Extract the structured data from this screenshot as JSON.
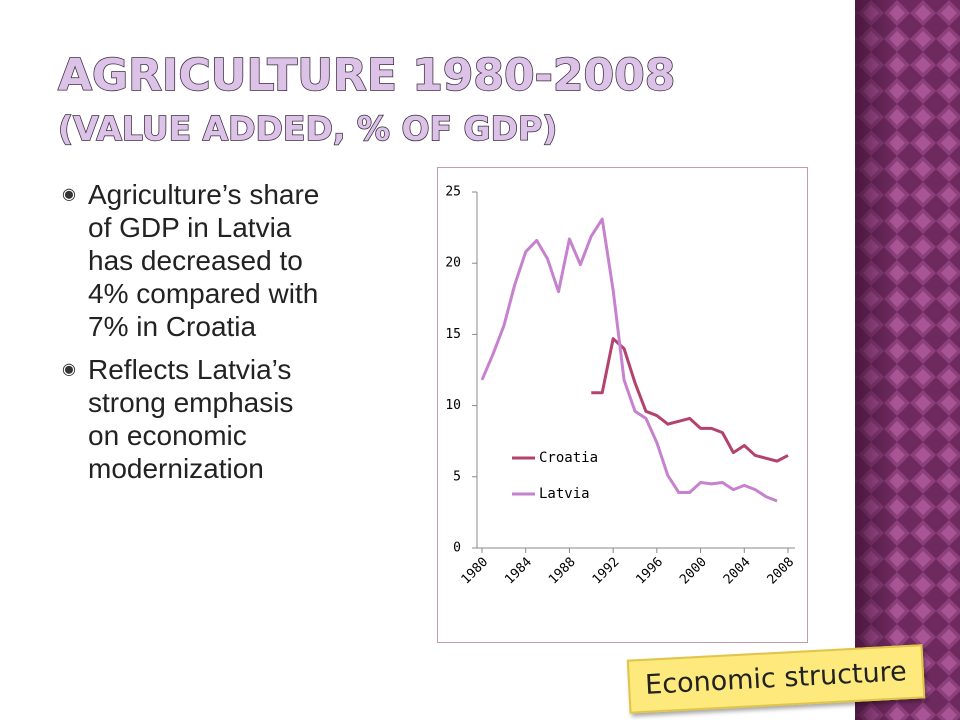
{
  "slide": {
    "title": [
      "AGRICULTURE 1980-2008",
      "(VALUE ADDED, % OF GDP)"
    ],
    "bullets": [
      [
        "Agriculture’s share",
        "of GDP in Latvia",
        "has decreased to",
        "4% compared with",
        "7% in Croatia"
      ],
      [
        "Reflects Latvia’s",
        "strong emphasis",
        "on economic",
        "modernization"
      ]
    ],
    "tag": "Economic structure"
  },
  "chart_data": {
    "type": "line",
    "x": [
      1980,
      1981,
      1982,
      1983,
      1984,
      1985,
      1986,
      1987,
      1988,
      1989,
      1990,
      1991,
      1992,
      1993,
      1994,
      1995,
      1996,
      1997,
      1998,
      1999,
      2000,
      2001,
      2002,
      2003,
      2004,
      2005,
      2006,
      2007,
      2008
    ],
    "series": [
      {
        "name": "Croatia",
        "color": "#b3426e",
        "values": [
          null,
          null,
          null,
          null,
          null,
          null,
          null,
          null,
          null,
          null,
          10.9,
          10.9,
          14.7,
          14.0,
          11.6,
          9.6,
          9.3,
          8.7,
          8.9,
          9.1,
          8.4,
          8.4,
          8.1,
          6.7,
          7.2,
          6.5,
          6.3,
          6.1,
          6.5
        ]
      },
      {
        "name": "Latvia",
        "color": "#c681cf",
        "values": [
          11.8,
          13.6,
          15.6,
          18.5,
          20.8,
          21.6,
          20.3,
          18.0,
          21.7,
          19.9,
          21.9,
          23.1,
          18.1,
          11.8,
          9.6,
          9.1,
          7.4,
          5.1,
          3.9,
          3.9,
          4.6,
          4.5,
          4.6,
          4.1,
          4.4,
          4.1,
          3.6,
          3.3,
          null
        ]
      }
    ],
    "xlim": [
      1980,
      2008
    ],
    "xticks": [
      1980,
      1984,
      1988,
      1992,
      1996,
      2000,
      2004,
      2008
    ],
    "ylim": [
      0,
      25
    ],
    "yticks": [
      0,
      5,
      10,
      15,
      20,
      25
    ],
    "grid": false
  }
}
